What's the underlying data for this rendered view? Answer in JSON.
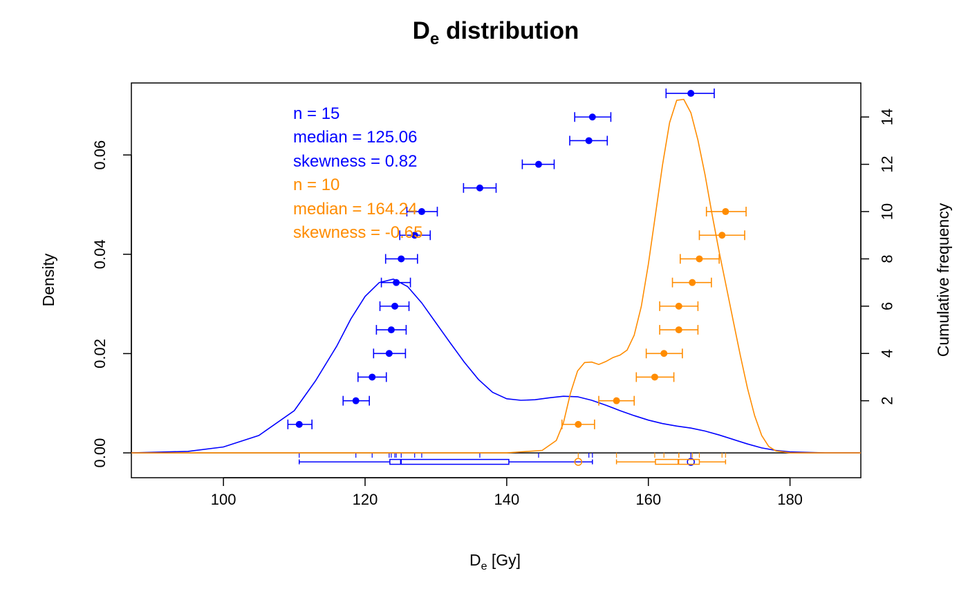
{
  "chart_data": {
    "type": "line",
    "title": {
      "main": "D",
      "sub": "e",
      "rest": " distribution"
    },
    "xlabel": {
      "main": "D",
      "sub": "e",
      "rest": " [Gy]"
    },
    "ylabel": "Density",
    "y2label": "Cumulative frequency",
    "xlim": [
      87,
      190
    ],
    "ylim": [
      -0.005,
      0.0745
    ],
    "y2lim": [
      -1.255,
      15.44
    ],
    "x_ticks": [
      100,
      120,
      140,
      160,
      180
    ],
    "x_tick_labels": [
      "100",
      "120",
      "140",
      "160",
      "180"
    ],
    "y_ticks": [
      0.0,
      0.02,
      0.04,
      0.06
    ],
    "y_tick_labels": [
      "0.00",
      "0.02",
      "0.04",
      "0.06"
    ],
    "y2_ticks": [
      2,
      4,
      6,
      8,
      10,
      12,
      14
    ],
    "y2_tick_labels": [
      "2",
      "4",
      "6",
      "8",
      "10",
      "12",
      "14"
    ],
    "grid": false,
    "colors": {
      "series1": "#0000ff",
      "series2": "#ff8c00"
    },
    "stats_lines": [
      {
        "text": "n = 15",
        "series": 0
      },
      {
        "text": "median = 125.06",
        "series": 0
      },
      {
        "text": "skewness = 0.82",
        "series": 0
      },
      {
        "text": "n = 10",
        "series": 1
      },
      {
        "text": "median = 164.24",
        "series": 1
      },
      {
        "text": "skewness = -0.65",
        "series": 1
      }
    ],
    "series": [
      {
        "color": "#0000ff",
        "density": {
          "x": [
            87,
            95,
            100,
            105,
            110,
            113,
            116,
            118,
            120,
            122,
            124,
            126,
            128,
            130,
            132,
            134,
            136,
            138,
            140,
            142,
            144,
            146,
            148,
            150,
            152,
            154,
            156,
            158,
            160,
            162,
            164,
            166,
            168,
            170,
            172,
            174,
            176,
            178,
            180,
            185,
            190
          ],
          "y": [
            0.0,
            0.0003,
            0.0012,
            0.0035,
            0.0085,
            0.0145,
            0.0215,
            0.027,
            0.0315,
            0.0343,
            0.035,
            0.0335,
            0.0302,
            0.0262,
            0.0222,
            0.0183,
            0.0148,
            0.0122,
            0.0109,
            0.0106,
            0.0107,
            0.0111,
            0.0114,
            0.0113,
            0.0106,
            0.0096,
            0.0085,
            0.0075,
            0.0066,
            0.0059,
            0.0054,
            0.005,
            0.0044,
            0.0036,
            0.0027,
            0.0018,
            0.001,
            0.0005,
            0.0002,
            0.0,
            0.0
          ]
        },
        "points": [
          {
            "x": 110.7,
            "lo": 109.1,
            "hi": 112.5,
            "rank": 1
          },
          {
            "x": 118.7,
            "lo": 116.9,
            "hi": 120.6,
            "rank": 2
          },
          {
            "x": 121.0,
            "lo": 119.0,
            "hi": 123.0,
            "rank": 3
          },
          {
            "x": 123.4,
            "lo": 121.2,
            "hi": 125.7,
            "rank": 4
          },
          {
            "x": 123.7,
            "lo": 121.6,
            "hi": 125.8,
            "rank": 5
          },
          {
            "x": 124.2,
            "lo": 122.1,
            "hi": 126.2,
            "rank": 6
          },
          {
            "x": 124.4,
            "lo": 122.3,
            "hi": 126.4,
            "rank": 7
          },
          {
            "x": 125.1,
            "lo": 122.9,
            "hi": 127.4,
            "rank": 8
          },
          {
            "x": 127.0,
            "lo": 124.9,
            "hi": 129.2,
            "rank": 9
          },
          {
            "x": 128.0,
            "lo": 125.9,
            "hi": 130.2,
            "rank": 10
          },
          {
            "x": 136.2,
            "lo": 133.9,
            "hi": 138.5,
            "rank": 11
          },
          {
            "x": 144.5,
            "lo": 142.2,
            "hi": 146.7,
            "rank": 12
          },
          {
            "x": 151.6,
            "lo": 148.9,
            "hi": 154.2,
            "rank": 13
          },
          {
            "x": 152.1,
            "lo": 149.6,
            "hi": 154.7,
            "rank": 14
          },
          {
            "x": 166.0,
            "lo": 162.5,
            "hi": 169.3,
            "rank": 15
          }
        ],
        "boxplot": {
          "min": 110.7,
          "q1": 123.5,
          "median": 125.06,
          "q3": 140.3,
          "max": 152.1,
          "outliers": [
            166.0
          ]
        }
      },
      {
        "color": "#ff8c00",
        "density": {
          "x": [
            87,
            140,
            145,
            147,
            148,
            149,
            150,
            151,
            152,
            153,
            154,
            155,
            156,
            157,
            158,
            159,
            160,
            161,
            162,
            163,
            164,
            165,
            166,
            167,
            168,
            169,
            170,
            171,
            172,
            173,
            174,
            175,
            176,
            177,
            178,
            180,
            185,
            190
          ],
          "y": [
            0.0,
            0.0,
            0.0005,
            0.0025,
            0.006,
            0.012,
            0.0165,
            0.0182,
            0.0183,
            0.0178,
            0.0184,
            0.0192,
            0.0197,
            0.0207,
            0.0237,
            0.0295,
            0.038,
            0.048,
            0.058,
            0.0665,
            0.071,
            0.0712,
            0.0685,
            0.063,
            0.056,
            0.048,
            0.0405,
            0.0335,
            0.0265,
            0.0195,
            0.013,
            0.0075,
            0.0035,
            0.0013,
            0.0004,
            0.0,
            0.0,
            0.0
          ]
        },
        "points": [
          {
            "x": 150.1,
            "lo": 147.8,
            "hi": 152.4,
            "rank": 1
          },
          {
            "x": 155.5,
            "lo": 153.0,
            "hi": 158.0,
            "rank": 2
          },
          {
            "x": 160.9,
            "lo": 158.3,
            "hi": 163.6,
            "rank": 3
          },
          {
            "x": 162.2,
            "lo": 159.7,
            "hi": 164.8,
            "rank": 4
          },
          {
            "x": 164.3,
            "lo": 161.6,
            "hi": 167.0,
            "rank": 5
          },
          {
            "x": 164.3,
            "lo": 161.6,
            "hi": 167.0,
            "rank": 6
          },
          {
            "x": 166.2,
            "lo": 163.4,
            "hi": 168.9,
            "rank": 7
          },
          {
            "x": 167.2,
            "lo": 164.5,
            "hi": 170.0,
            "rank": 8
          },
          {
            "x": 170.4,
            "lo": 167.2,
            "hi": 173.6,
            "rank": 9
          },
          {
            "x": 170.9,
            "lo": 168.2,
            "hi": 173.8,
            "rank": 10
          }
        ],
        "boxplot": {
          "min": 155.5,
          "q1": 161.0,
          "median": 164.24,
          "q3": 167.2,
          "max": 170.9,
          "outliers": [
            150.1
          ]
        }
      }
    ]
  }
}
